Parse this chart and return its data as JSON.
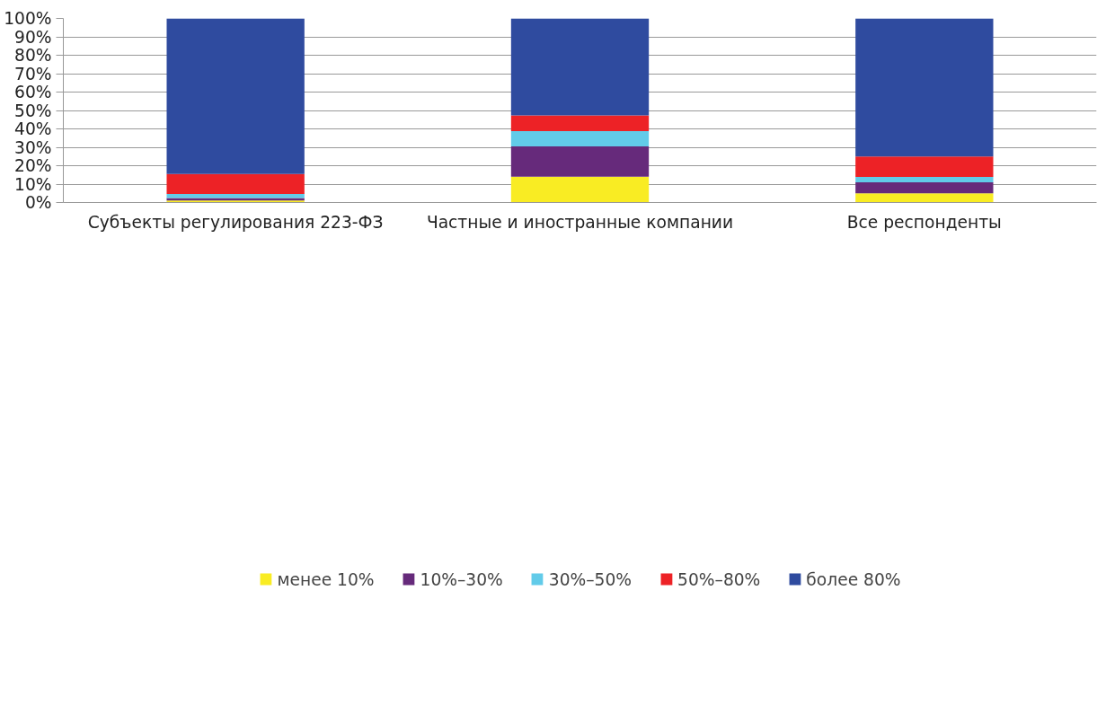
{
  "chart_data": {
    "type": "bar",
    "stacked": true,
    "categories": [
      "Субъекты регулирования 223-ФЗ",
      "Частные и иностранные компании",
      "Все респонденты"
    ],
    "series": [
      {
        "name": "менее 10%",
        "color": "#f9ec23",
        "values": [
          1.1,
          14.0,
          5.0
        ]
      },
      {
        "name": "10%–30%",
        "color": "#662a7b",
        "values": [
          1.4,
          16.5,
          6.0
        ]
      },
      {
        "name": "30%–50%",
        "color": "#62cbe9",
        "values": [
          2.1,
          8.3,
          2.9
        ]
      },
      {
        "name": "50%–80%",
        "color": "#ed2226",
        "values": [
          10.9,
          8.5,
          11.1
        ]
      },
      {
        "name": "более 80%",
        "color": "#2f4b9f",
        "values": [
          84.5,
          52.7,
          75.0
        ]
      }
    ],
    "ylim": [
      0,
      100
    ],
    "yticks": [
      {
        "value": 0,
        "label": "0%"
      },
      {
        "value": 10,
        "label": "10%"
      },
      {
        "value": 20,
        "label": "20%"
      },
      {
        "value": 30,
        "label": "30%"
      },
      {
        "value": 40,
        "label": "40%"
      },
      {
        "value": 50,
        "label": "50%"
      },
      {
        "value": 60,
        "label": "60%"
      },
      {
        "value": 70,
        "label": "70%"
      },
      {
        "value": 80,
        "label": "80%"
      },
      {
        "value": 90,
        "label": "90%"
      },
      {
        "value": 100,
        "label": "100%"
      }
    ],
    "grid": "y",
    "legend": "bottom"
  }
}
